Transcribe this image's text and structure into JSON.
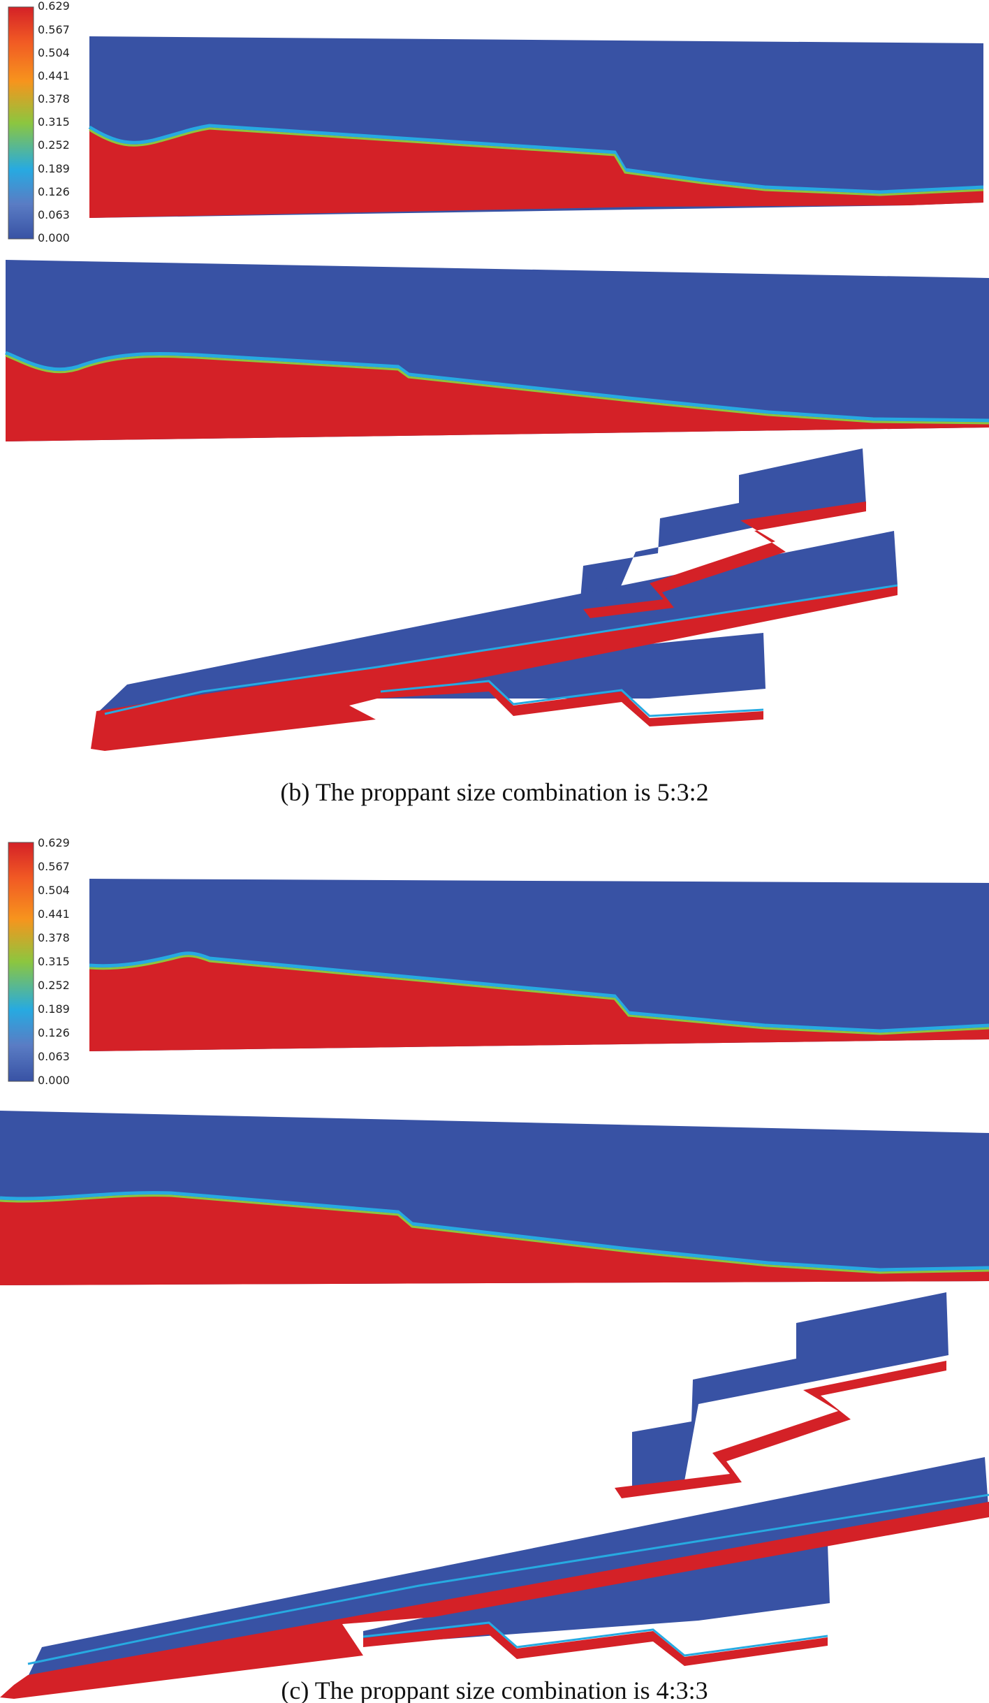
{
  "colors": {
    "low": "#3852a4",
    "high": "#d42127",
    "gradient_stops": [
      "#3852a4",
      "#5a7cc4",
      "#27aae1",
      "#8cc63f",
      "#f7941d",
      "#f15a24",
      "#d42127"
    ]
  },
  "colorbar_ticks": [
    "0.629",
    "0.567",
    "0.504",
    "0.441",
    "0.378",
    "0.315",
    "0.252",
    "0.189",
    "0.126",
    "0.063",
    "0.000"
  ],
  "panels": [
    {
      "id": "b",
      "caption": "(b) The proppant size combination is 5:3:2"
    },
    {
      "id": "c",
      "caption": "(c) The proppant size combination is 4:3:3"
    }
  ]
}
